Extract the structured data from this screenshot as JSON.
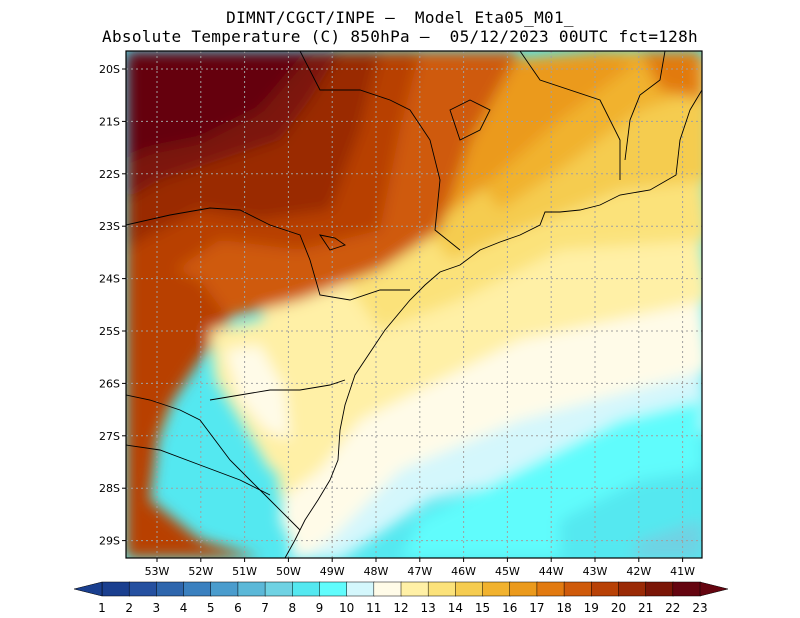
{
  "title": {
    "line1": "DIMNT/CGCT/INPE –  Model Eta05_M01_",
    "line2": "Absolute Temperature (C) 850hPa –  05/12/2023 00UTC fct=128h"
  },
  "map": {
    "lat_labels": [
      "20S",
      "21S",
      "22S",
      "23S",
      "24S",
      "25S",
      "26S",
      "27S",
      "28S",
      "29S"
    ],
    "lon_labels": [
      "53W",
      "52W",
      "51W",
      "50W",
      "49W",
      "48W",
      "47W",
      "46W",
      "45W",
      "44W",
      "43W",
      "42W",
      "41W"
    ],
    "field": "Absolute Temperature (C) 850hPa",
    "region": "Southern/Southeastern Brazil and adjacent Atlantic"
  },
  "colorbar": {
    "labels": [
      "1",
      "2",
      "3",
      "4",
      "5",
      "6",
      "7",
      "8",
      "9",
      "10",
      "11",
      "12",
      "13",
      "14",
      "15",
      "16",
      "17",
      "18",
      "19",
      "20",
      "21",
      "22",
      "23"
    ],
    "colors": [
      "#1a3f8f",
      "#2550a0",
      "#2e66ad",
      "#3a80bf",
      "#4a9ccd",
      "#5bb8d8",
      "#6fd2e3",
      "#54e8f0",
      "#60fcfc",
      "#d4f7fc",
      "#fffbe8",
      "#fff0a6",
      "#fbe27a",
      "#f5cc50",
      "#f1b22e",
      "#eb9a1c",
      "#e27a10",
      "#cf5a0a",
      "#b84106",
      "#9a2a06",
      "#7b1607",
      "#650510",
      "#c0c0c0"
    ],
    "left_arrow_color": "#1a3f8f",
    "right_arrow_color": "#650510"
  }
}
